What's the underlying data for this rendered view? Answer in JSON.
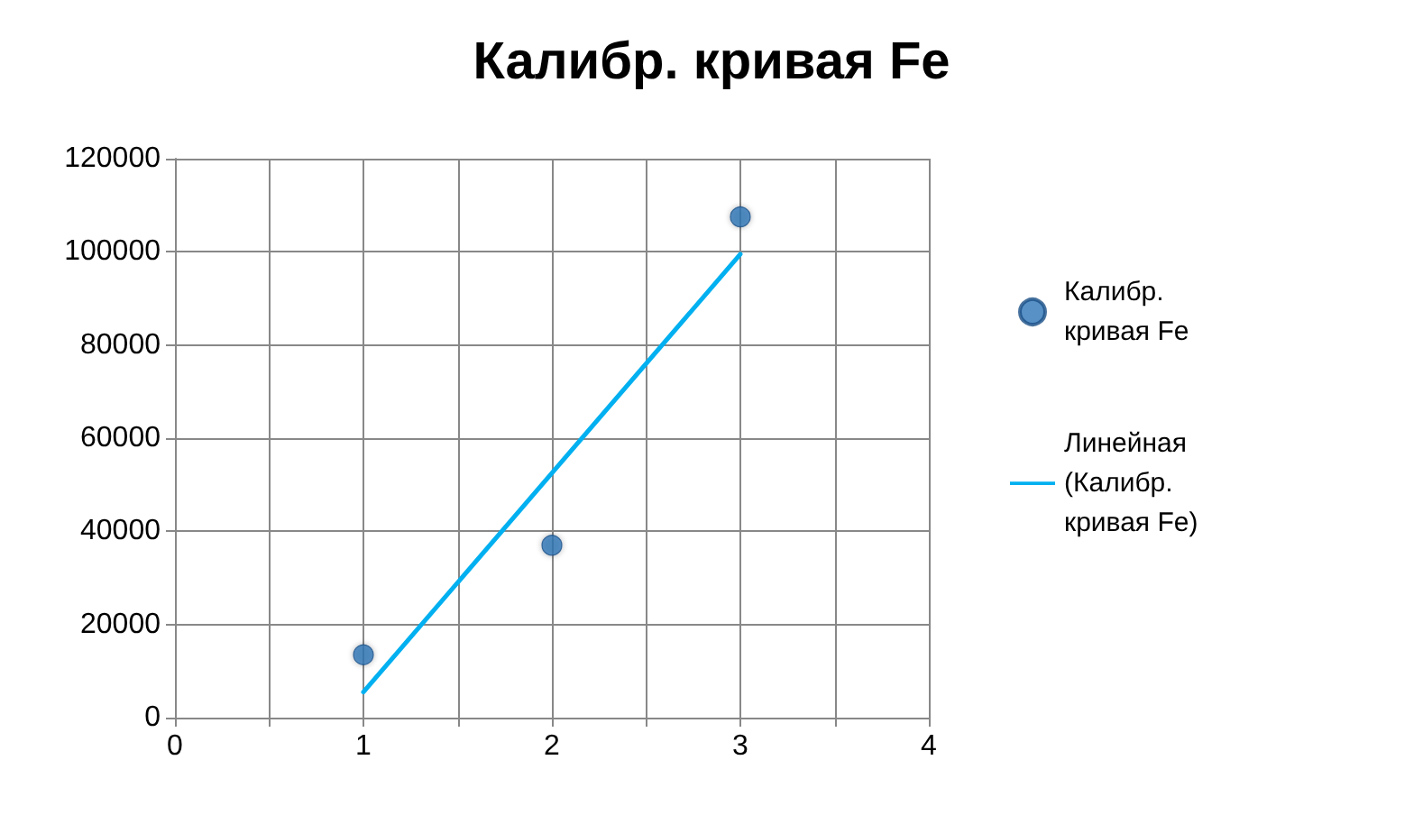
{
  "chart_data": {
    "type": "scatter",
    "title": "Калибр. кривая Fe",
    "series": [
      {
        "name": "Калибр. кривая Fe",
        "color": "#2e75b6",
        "x": [
          1,
          2,
          3
        ],
        "values": [
          13500,
          37000,
          107500
        ],
        "marker": "circle"
      },
      {
        "type": "line",
        "name": "Линейная (Калибр. кривая Fe)",
        "color": "#00b0f0",
        "x": [
          1,
          3
        ],
        "values": [
          5500,
          99500
        ],
        "line_style": "solid"
      }
    ],
    "xlim": [
      0,
      4
    ],
    "xticks": [
      0,
      {
        "value": 0.5,
        "label": null
      },
      1,
      {
        "value": 1.5,
        "label": null
      },
      2,
      {
        "value": 2.5,
        "label": null
      },
      3,
      {
        "value": 3.5,
        "label": null
      },
      4
    ],
    "ylim": [
      0,
      120000
    ],
    "yticks": [
      0,
      20000,
      40000,
      60000,
      80000,
      100000,
      120000
    ],
    "grid": true,
    "legend": "right"
  }
}
